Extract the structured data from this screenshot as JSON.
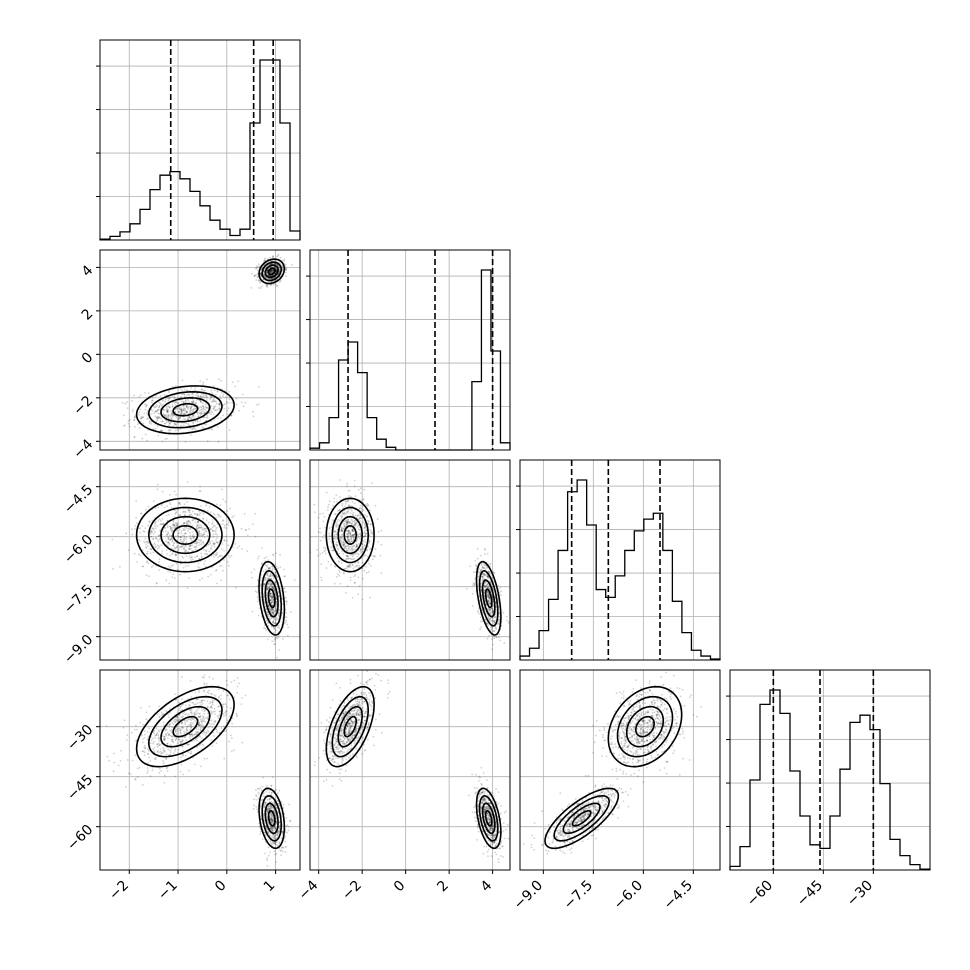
{
  "chart_data": {
    "type": "corner",
    "parameters": 4,
    "colors": {
      "ink": "#000000",
      "grid": "#b0b0b0",
      "points": "#000000",
      "background": "#ffffff"
    },
    "grid": true,
    "ranges": [
      [
        -2.6,
        1.5
      ],
      [
        -4.4,
        4.8
      ],
      [
        -9.7,
        -3.7
      ],
      [
        -73,
        -13
      ]
    ],
    "ticks": [
      {
        "values": [
          -2,
          -1,
          0,
          1
        ],
        "labels": [
          "−2",
          "−1",
          "0",
          "1"
        ]
      },
      {
        "values": [
          -4,
          -2,
          0,
          2,
          4
        ],
        "labels": [
          "−4",
          "−2",
          "0",
          "2",
          "4"
        ]
      },
      {
        "values": [
          -9.0,
          -7.5,
          -6.0,
          -4.5
        ],
        "labels": [
          "−9.0",
          "−7.5",
          "−6.0",
          "−4.5"
        ]
      },
      {
        "values": [
          -60,
          -45,
          -30
        ],
        "labels": [
          "−60",
          "−45",
          "−30"
        ]
      }
    ],
    "quantiles": [
      [
        -1.15,
        0.55,
        0.95
      ],
      [
        -2.65,
        1.35,
        4.0
      ],
      [
        -8.15,
        -7.05,
        -5.5
      ],
      [
        -60.0,
        -46.0,
        -30.0
      ]
    ],
    "histograms": [
      [
        0.005,
        0.02,
        0.045,
        0.09,
        0.17,
        0.28,
        0.36,
        0.38,
        0.34,
        0.27,
        0.19,
        0.11,
        0.06,
        0.025,
        0.06,
        0.65,
        1.0,
        1.0,
        0.65,
        0.05
      ],
      [
        0.01,
        0.04,
        0.18,
        0.5,
        0.6,
        0.43,
        0.18,
        0.06,
        0.015,
        0.0,
        0.0,
        0.0,
        0.0,
        0.0,
        0.0,
        0.0,
        0.0,
        0.38,
        1.0,
        0.55,
        0.04
      ],
      [
        0.02,
        0.06,
        0.15,
        0.31,
        0.56,
        0.86,
        0.92,
        0.69,
        0.36,
        0.32,
        0.43,
        0.56,
        0.66,
        0.72,
        0.75,
        0.56,
        0.3,
        0.14,
        0.05,
        0.02,
        0.005
      ],
      [
        0.02,
        0.13,
        0.5,
        0.92,
        1.0,
        0.87,
        0.55,
        0.3,
        0.14,
        0.12,
        0.3,
        0.56,
        0.82,
        0.86,
        0.78,
        0.48,
        0.17,
        0.08,
        0.03,
        0.005
      ]
    ],
    "modes": [
      {
        "weight": 0.55,
        "mean": [
          -0.85,
          -2.55,
          -5.95,
          -30.0
        ],
        "sd": [
          0.5,
          0.55,
          0.55,
          6.0
        ],
        "corr": [
          [
            0,
            1,
            0.2
          ],
          [
            0,
            3,
            0.55
          ],
          [
            1,
            3,
            0.55
          ],
          [
            2,
            3,
            0.3
          ]
        ]
      },
      {
        "weight": 0.45,
        "mean": [
          0.92,
          3.82,
          -7.85,
          -57.5
        ],
        "sd": [
          0.13,
          0.28,
          0.55,
          4.5
        ],
        "corr": [
          [
            0,
            1,
            0.2
          ],
          [
            0,
            2,
            -0.3
          ],
          [
            0,
            3,
            -0.3
          ],
          [
            1,
            2,
            -0.5
          ],
          [
            1,
            3,
            -0.45
          ],
          [
            2,
            3,
            0.75
          ]
        ]
      }
    ]
  }
}
